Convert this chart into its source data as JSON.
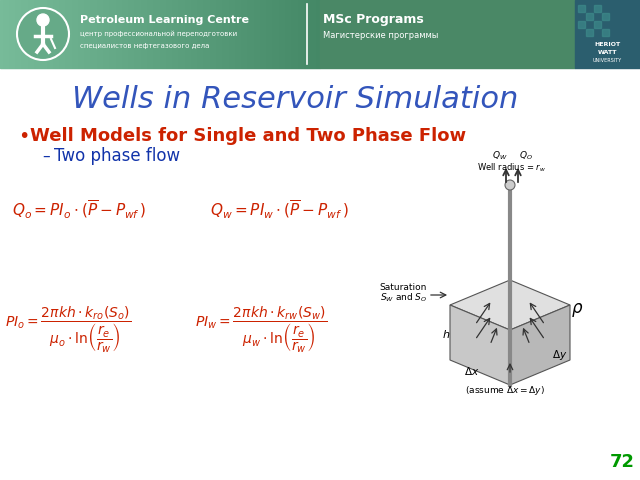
{
  "title": "Wells in Reservoir Simulation",
  "title_color": "#3355BB",
  "title_fontsize": 22,
  "bullet1": "Well Models for Single and Two Phase Flow",
  "bullet1_color": "#CC2200",
  "bullet1_fontsize": 13,
  "sub_bullet1": "Two phase flow",
  "sub_bullet1_color": "#1133AA",
  "sub_bullet1_fontsize": 12,
  "formula_color": "#CC2200",
  "slide_number": "72",
  "slide_number_color": "#009900",
  "bg_color": "#FFFFFF",
  "header_green_left": "#55AA77",
  "header_green_right": "#448866",
  "header_text1": "Petroleum Learning Centre",
  "header_text2": "центр профессиональной переподготовки",
  "header_text3": "специалистов нефтегазового дела",
  "header_text4": "MSc Programs",
  "header_text5": "Магистерские программы"
}
